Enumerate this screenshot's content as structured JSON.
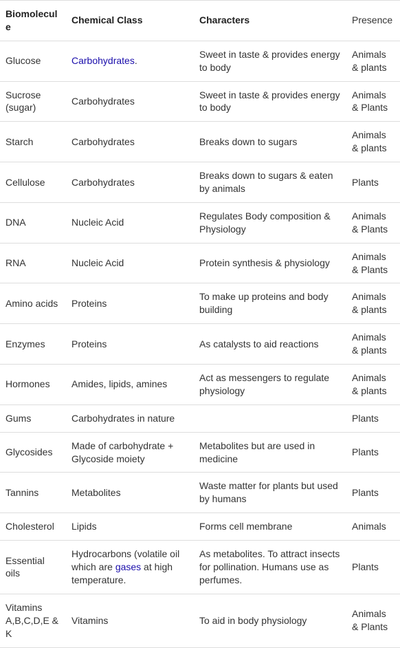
{
  "columns": [
    "Biomolecule",
    "Chemical Class",
    "Characters",
    "Presence"
  ],
  "rows": [
    {
      "biomolecule": "Glucose",
      "chemical_class_prefix": "",
      "chemical_class_link": "Carbohydrates",
      "chemical_class_suffix": ".",
      "characters": "Sweet in taste & provides energy to body",
      "presence": "Animals & plants"
    },
    {
      "biomolecule": "Sucrose (sugar)",
      "chemical_class": "Carbohydrates",
      "characters": "Sweet in taste & provides energy to body",
      "presence": "Animals & Plants"
    },
    {
      "biomolecule": "Starch",
      "chemical_class": "Carbohydrates",
      "characters": "Breaks down to sugars",
      "presence": "Animals & plants"
    },
    {
      "biomolecule": "Cellulose",
      "chemical_class": "Carbohydrates",
      "characters": "Breaks down to sugars & eaten by animals",
      "presence": "Plants"
    },
    {
      "biomolecule": "DNA",
      "chemical_class": "Nucleic Acid",
      "characters": "Regulates Body composition & Physiology",
      "presence": "Animals & Plants"
    },
    {
      "biomolecule": "RNA",
      "chemical_class": "Nucleic Acid",
      "characters": "Protein synthesis & physiology",
      "presence": "Animals & Plants"
    },
    {
      "biomolecule": "Amino acids",
      "chemical_class": "Proteins",
      "characters": "To make up proteins and body building",
      "presence": "Animals & plants"
    },
    {
      "biomolecule": "Enzymes",
      "chemical_class": "Proteins",
      "characters": "As catalysts to aid reactions",
      "presence": "Animals & plants"
    },
    {
      "biomolecule": "Hormones",
      "chemical_class": "Amides, lipids, amines",
      "characters": "Act as messengers to regulate physiology",
      "presence": "Animals & plants"
    },
    {
      "biomolecule": "Gums",
      "chemical_class": "Carbohydrates in nature",
      "characters": "",
      "presence": "Plants"
    },
    {
      "biomolecule": "Glycosides",
      "chemical_class": "Made of carbohydrate + Glycoside moiety",
      "characters": "Metabolites but are used in medicine",
      "presence": "Plants"
    },
    {
      "biomolecule": "Tannins",
      "chemical_class": "Metabolites",
      "characters": "Waste matter for plants but used by humans",
      "presence": "Plants"
    },
    {
      "biomolecule": "Cholesterol",
      "chemical_class": "Lipids",
      "characters": "Forms cell membrane",
      "presence": "Animals"
    },
    {
      "biomolecule": "Essential oils",
      "chemical_class_prefix": "Hydrocarbons (volatile oil which are ",
      "chemical_class_link": "gases",
      "chemical_class_suffix": " at high temperature.",
      "characters": "As metabolites. To attract insects for pollination. Humans use as perfumes.",
      "presence": "Plants"
    },
    {
      "biomolecule": "Vitamins A,B,C,D,E & K",
      "chemical_class": "Vitamins",
      "characters": "To aid in body physiology",
      "presence": "Animals & Plants"
    }
  ]
}
